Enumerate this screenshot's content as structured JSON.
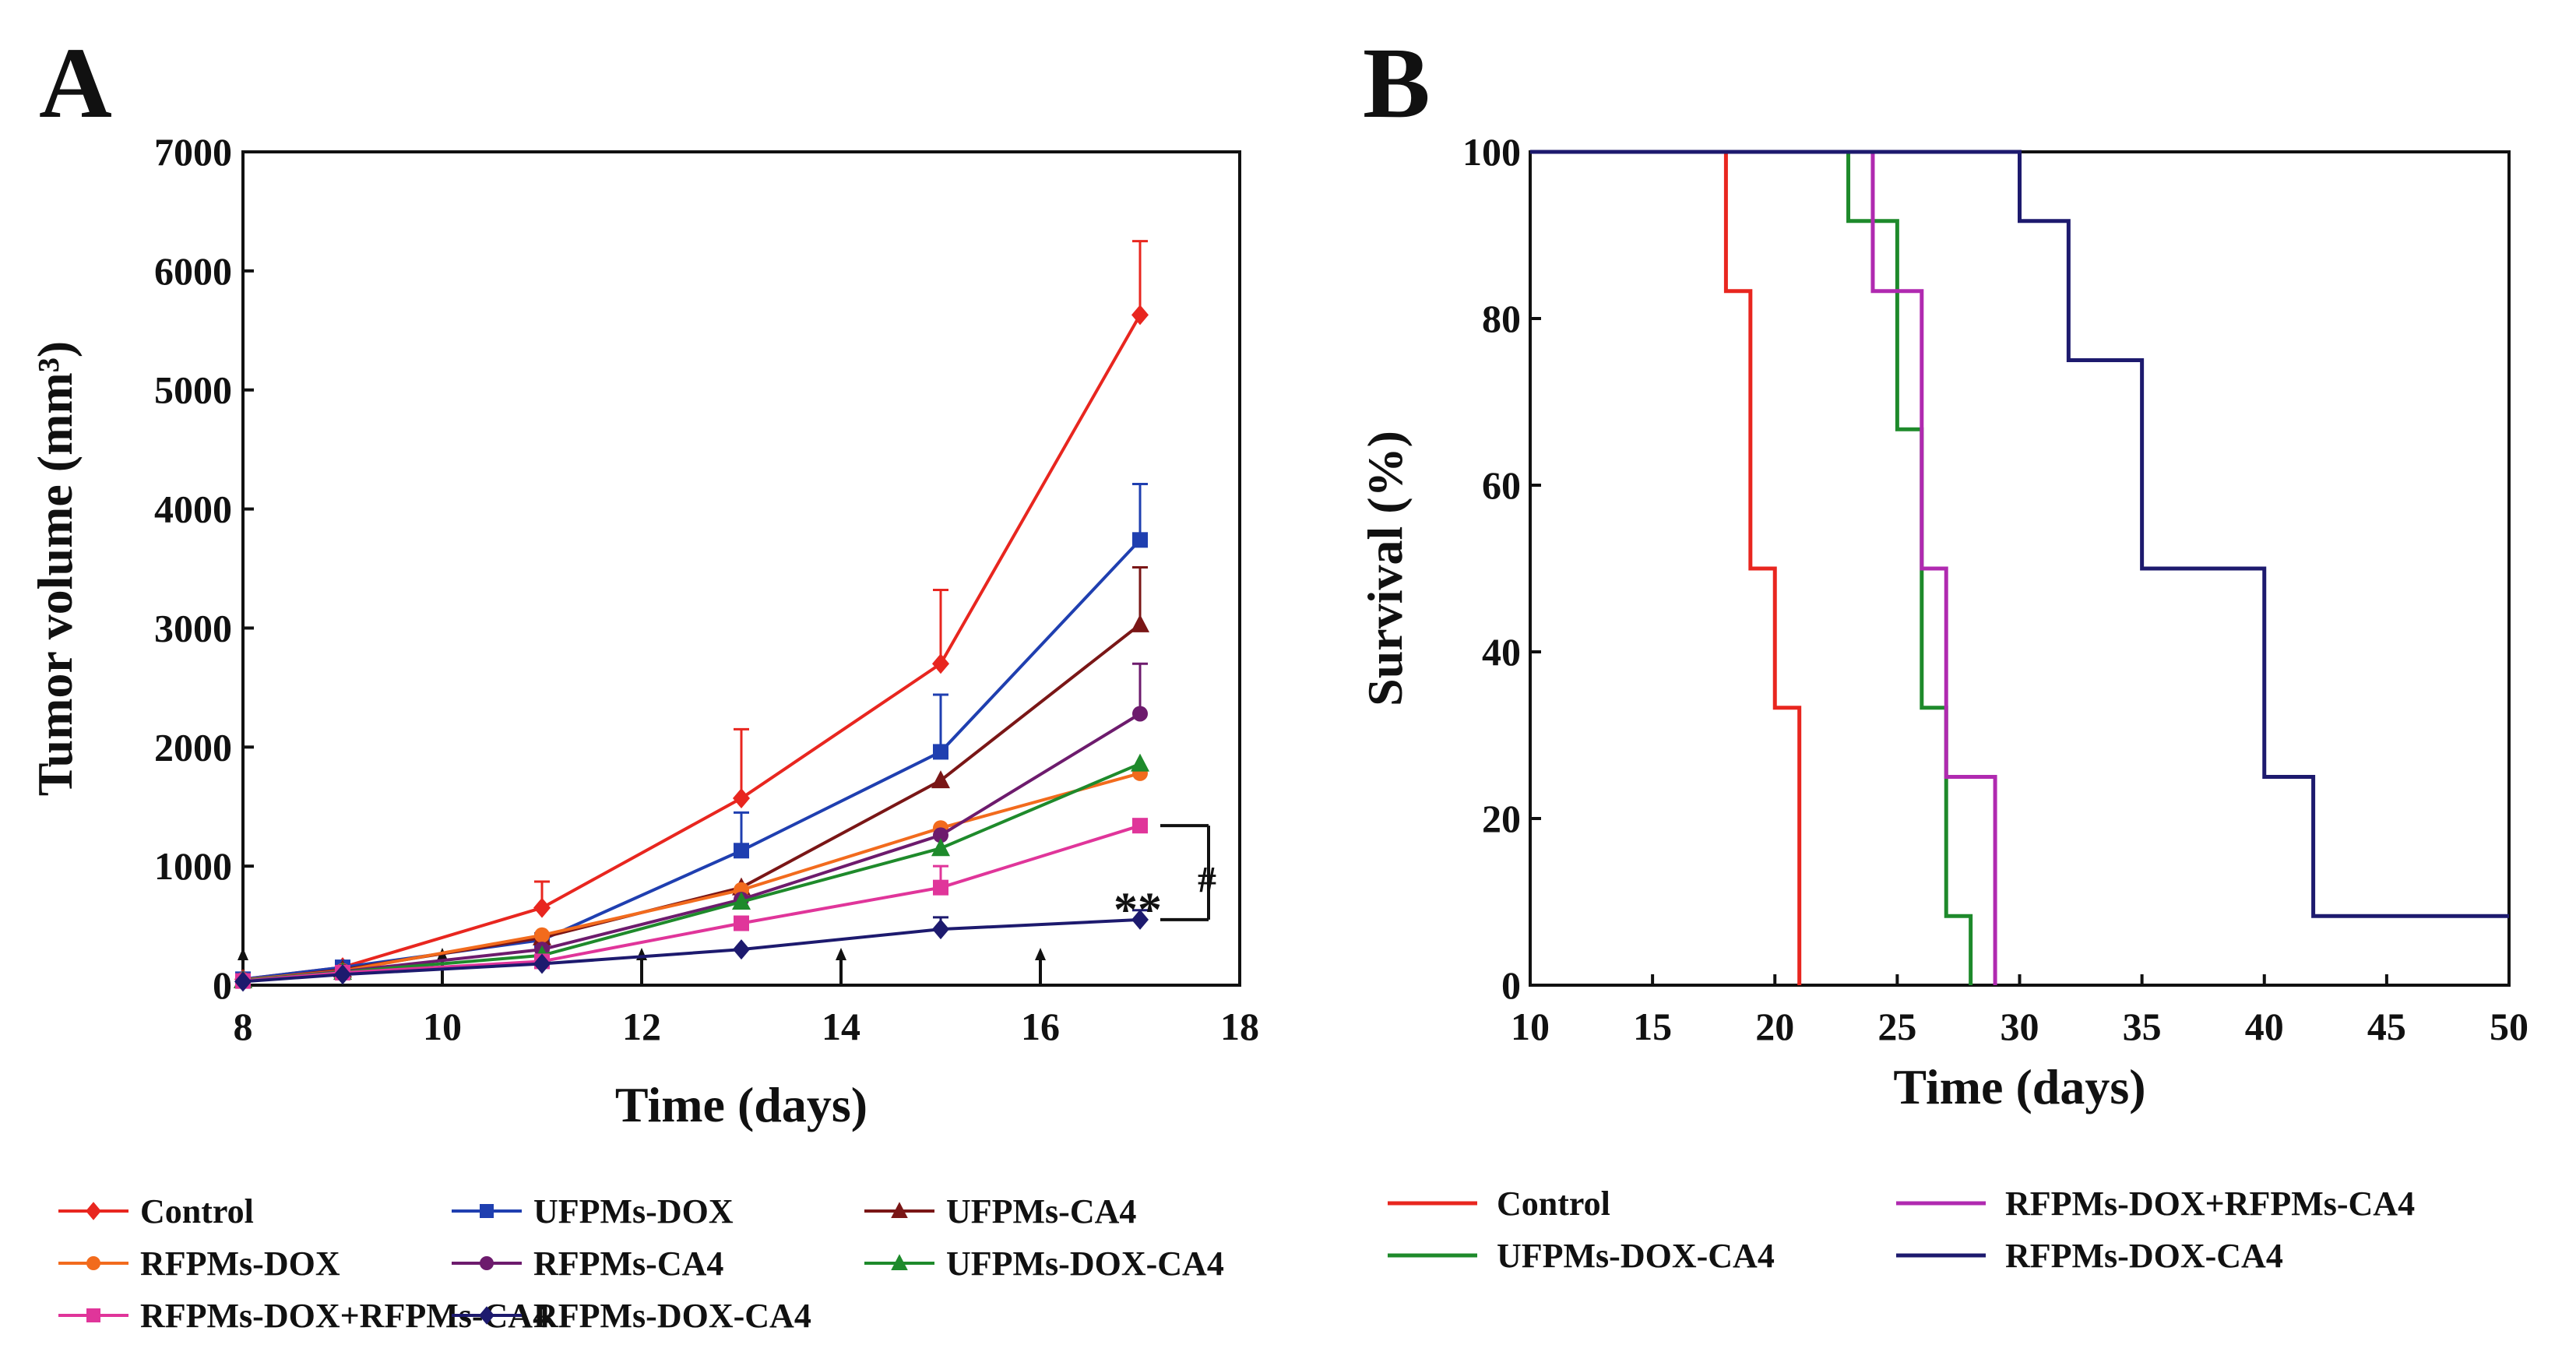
{
  "chart_data": [
    {
      "panel": "A",
      "type": "line",
      "xlabel": "Time (days)",
      "ylabel": "Tumor volume (mm³)",
      "xlim": [
        8,
        18
      ],
      "ylim": [
        0,
        7000
      ],
      "xticks": [
        8,
        10,
        12,
        14,
        16,
        18
      ],
      "yticks": [
        0,
        1000,
        2000,
        3000,
        4000,
        5000,
        6000,
        7000
      ],
      "dose_days": [
        8,
        10,
        12,
        14,
        16
      ],
      "x": [
        8,
        9,
        11,
        13,
        15,
        17
      ],
      "series": [
        {
          "name": "Control",
          "color": "#e8261f",
          "marker": "diamond",
          "values": [
            50,
            150,
            650,
            1570,
            2700,
            5630
          ],
          "errors": [
            0,
            0,
            220,
            580,
            620,
            620
          ]
        },
        {
          "name": "UFPMs-DOX",
          "color": "#1f3fb0",
          "marker": "square",
          "values": [
            50,
            150,
            380,
            1130,
            1960,
            3740
          ],
          "errors": [
            0,
            20,
            0,
            320,
            480,
            470
          ]
        },
        {
          "name": "UFPMs-CA4",
          "color": "#7a1616",
          "marker": "triangle",
          "values": [
            40,
            130,
            400,
            820,
            1720,
            3030
          ],
          "errors": [
            0,
            0,
            0,
            0,
            0,
            480
          ]
        },
        {
          "name": "RFPMs-DOX",
          "color": "#f26b1d",
          "marker": "circle",
          "values": [
            45,
            120,
            420,
            800,
            1320,
            1780
          ],
          "errors": [
            0,
            0,
            0,
            0,
            0,
            0
          ]
        },
        {
          "name": "RFPMs-CA4",
          "color": "#6d1b6d",
          "marker": "circle",
          "values": [
            40,
            115,
            300,
            720,
            1260,
            2280
          ],
          "errors": [
            0,
            0,
            0,
            0,
            0,
            420
          ]
        },
        {
          "name": "UFPMs-DOX-CA4",
          "color": "#1e8a2b",
          "marker": "triangle",
          "values": [
            40,
            110,
            250,
            700,
            1150,
            1860
          ],
          "errors": [
            0,
            0,
            0,
            0,
            0,
            0
          ]
        },
        {
          "name": "RFPMs-DOX+RFPMs-CA4",
          "color": "#e0359a",
          "marker": "square",
          "values": [
            35,
            105,
            200,
            520,
            820,
            1340
          ],
          "errors": [
            0,
            0,
            0,
            0,
            180,
            0
          ]
        },
        {
          "name": "RFPMs-DOX-CA4",
          "color": "#1d1a6e",
          "marker": "diamond",
          "values": [
            30,
            90,
            180,
            300,
            470,
            550
          ],
          "errors": [
            0,
            0,
            0,
            0,
            100,
            80
          ]
        }
      ],
      "annotations": [
        "**",
        "#"
      ],
      "legend": [
        [
          "Control",
          "UFPMs-DOX",
          "UFPMs-CA4"
        ],
        [
          "RFPMs-DOX",
          "RFPMs-CA4",
          "UFPMs-DOX-CA4"
        ],
        [
          "RFPMs-DOX+RFPMs-CA4",
          "RFPMs-DOX-CA4"
        ]
      ]
    },
    {
      "panel": "B",
      "type": "line",
      "subtype": "step",
      "xlabel": "Time (days)",
      "ylabel": "Survival (%)",
      "xlim": [
        10,
        50
      ],
      "ylim": [
        0,
        100
      ],
      "xticks": [
        10,
        15,
        20,
        25,
        30,
        35,
        40,
        45,
        50
      ],
      "yticks": [
        0,
        20,
        40,
        60,
        80,
        100
      ],
      "series": [
        {
          "name": "Control",
          "color": "#e8261f",
          "points": [
            [
              10,
              100
            ],
            [
              18,
              100
            ],
            [
              18,
              83.3
            ],
            [
              19,
              83.3
            ],
            [
              19,
              50
            ],
            [
              20,
              50
            ],
            [
              20,
              33.3
            ],
            [
              21,
              33.3
            ],
            [
              21,
              0
            ]
          ]
        },
        {
          "name": "UFPMs-DOX-CA4",
          "color": "#1e8a2b",
          "points": [
            [
              10,
              100
            ],
            [
              23,
              100
            ],
            [
              23,
              91.7
            ],
            [
              25,
              91.7
            ],
            [
              25,
              66.7
            ],
            [
              26,
              66.7
            ],
            [
              26,
              33.3
            ],
            [
              27,
              33.3
            ],
            [
              27,
              8.3
            ],
            [
              28,
              8.3
            ],
            [
              28,
              0
            ]
          ]
        },
        {
          "name": "RFPMs-DOX+RFPMs-CA4",
          "color": "#b02ab0",
          "points": [
            [
              10,
              100
            ],
            [
              24,
              100
            ],
            [
              24,
              83.3
            ],
            [
              26,
              83.3
            ],
            [
              26,
              50
            ],
            [
              27,
              50
            ],
            [
              27,
              25
            ],
            [
              29,
              25
            ],
            [
              29,
              0
            ]
          ]
        },
        {
          "name": "RFPMs-DOX-CA4",
          "color": "#1d1a6e",
          "points": [
            [
              10,
              100
            ],
            [
              30,
              100
            ],
            [
              30,
              91.7
            ],
            [
              32,
              91.7
            ],
            [
              32,
              75
            ],
            [
              35,
              75
            ],
            [
              35,
              50
            ],
            [
              40,
              50
            ],
            [
              40,
              25
            ],
            [
              42,
              25
            ],
            [
              42,
              8.3
            ],
            [
              50,
              8.3
            ]
          ]
        }
      ],
      "legend": [
        [
          "Control",
          "RFPMs-DOX+RFPMs-CA4"
        ],
        [
          "UFPMs-DOX-CA4",
          "RFPMs-DOX-CA4"
        ]
      ]
    }
  ]
}
